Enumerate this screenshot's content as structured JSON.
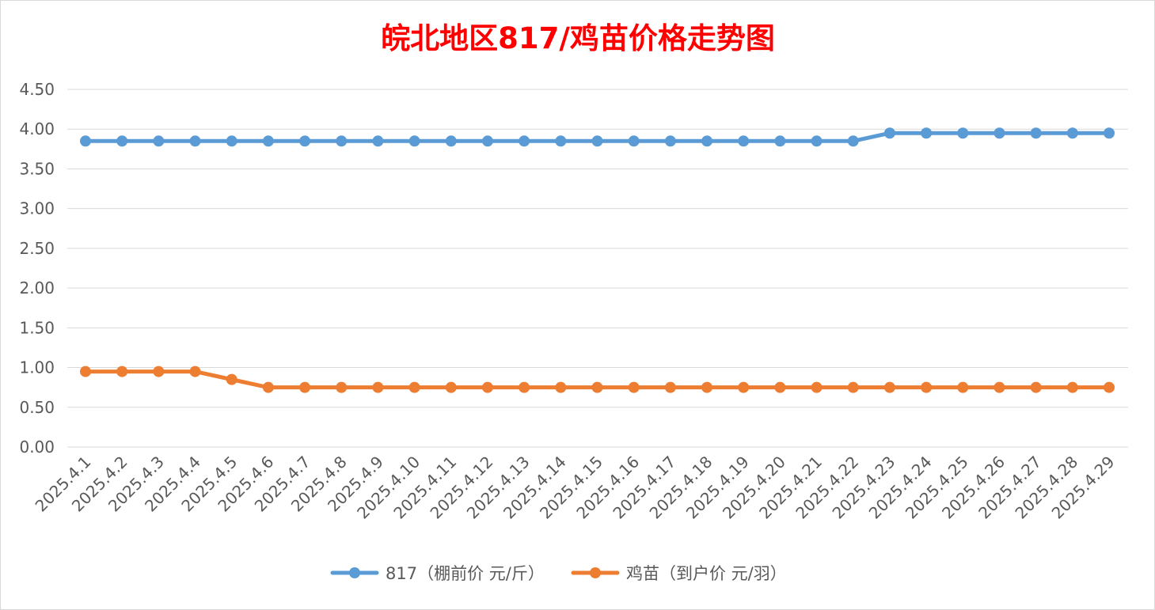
{
  "colors": {
    "series_817": "#5B9BD5",
    "series_chick": "#ED7D31",
    "title": "#FF0000",
    "axis_text": "#595959",
    "grid": "#D9D9D9"
  },
  "chart_data": {
    "type": "line",
    "title": "皖北地区817/鸡苗价格走势图",
    "xlabel": "",
    "ylabel": "",
    "ylim": [
      0,
      4.5
    ],
    "yticks": [
      "0.00",
      "0.50",
      "1.00",
      "1.50",
      "2.00",
      "2.50",
      "3.00",
      "3.50",
      "4.00",
      "4.50"
    ],
    "grid": true,
    "legend_position": "bottom",
    "categories": [
      "2025.4.1",
      "2025.4.2",
      "2025.4.3",
      "2025.4.4",
      "2025.4.5",
      "2025.4.6",
      "2025.4.7",
      "2025.4.8",
      "2025.4.9",
      "2025.4.10",
      "2025.4.11",
      "2025.4.12",
      "2025.4.13",
      "2025.4.14",
      "2025.4.15",
      "2025.4.16",
      "2025.4.17",
      "2025.4.18",
      "2025.4.19",
      "2025.4.20",
      "2025.4.21",
      "2025.4.22",
      "2025.4.23",
      "2025.4.24",
      "2025.4.25",
      "2025.4.26",
      "2025.4.27",
      "2025.4.28",
      "2025.4.29"
    ],
    "series": [
      {
        "name": "817（棚前价 元/斤）",
        "values": [
          3.85,
          3.85,
          3.85,
          3.85,
          3.85,
          3.85,
          3.85,
          3.85,
          3.85,
          3.85,
          3.85,
          3.85,
          3.85,
          3.85,
          3.85,
          3.85,
          3.85,
          3.85,
          3.85,
          3.85,
          3.85,
          3.85,
          3.95,
          3.95,
          3.95,
          3.95,
          3.95,
          3.95,
          3.95
        ]
      },
      {
        "name": "鸡苗（到户价 元/羽）",
        "values": [
          0.95,
          0.95,
          0.95,
          0.95,
          0.85,
          0.75,
          0.75,
          0.75,
          0.75,
          0.75,
          0.75,
          0.75,
          0.75,
          0.75,
          0.75,
          0.75,
          0.75,
          0.75,
          0.75,
          0.75,
          0.75,
          0.75,
          0.75,
          0.75,
          0.75,
          0.75,
          0.75,
          0.75,
          0.75
        ]
      }
    ]
  }
}
